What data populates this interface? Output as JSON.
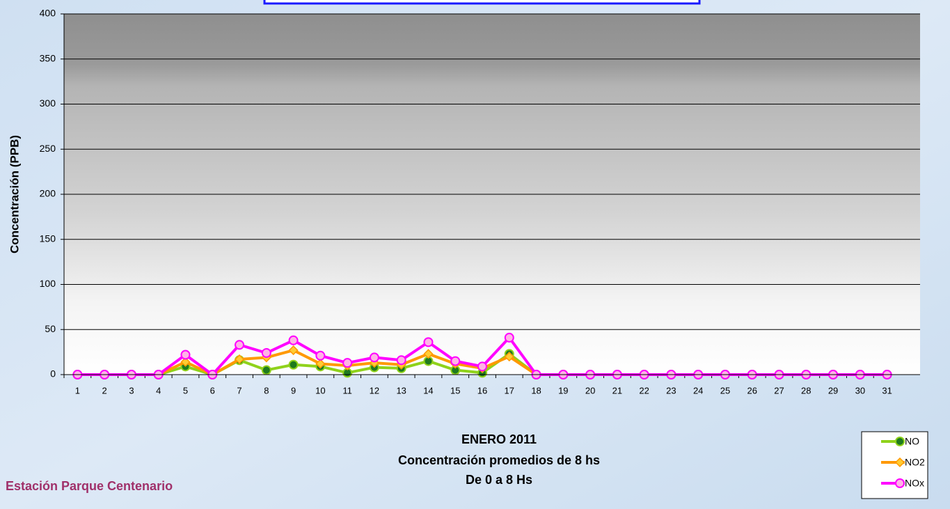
{
  "chart_data": {
    "type": "line",
    "title": "ENERO 2011",
    "subtitle_lines": [
      "Concentración promedios de 8 hs",
      "De 0 a 8 Hs"
    ],
    "annotation": "Estación Parque Centenario",
    "y_label": "Concentración  (PPB)",
    "categories": [
      "1",
      "2",
      "3",
      "4",
      "5",
      "6",
      "7",
      "8",
      "9",
      "10",
      "11",
      "12",
      "13",
      "14",
      "15",
      "16",
      "17",
      "18",
      "19",
      "20",
      "21",
      "22",
      "23",
      "24",
      "25",
      "26",
      "27",
      "28",
      "29",
      "30",
      "31"
    ],
    "series": [
      {
        "name": "NO",
        "color": "#8fd21b",
        "marker_color": "#1e7a1e",
        "marker": "circle",
        "values": [
          0,
          0,
          0,
          0,
          9,
          0,
          16,
          5,
          11,
          9,
          2,
          8,
          7,
          15,
          5,
          2,
          23,
          0,
          0,
          0,
          0,
          0,
          0,
          0,
          0,
          0,
          0,
          0,
          0,
          0,
          0
        ]
      },
      {
        "name": "NO2",
        "color": "#ff9900",
        "marker_color": "#ffcc33",
        "marker": "diamond",
        "values": [
          0,
          0,
          0,
          0,
          14,
          0,
          17,
          19,
          27,
          12,
          10,
          13,
          11,
          23,
          12,
          7,
          20,
          0,
          0,
          0,
          0,
          0,
          0,
          0,
          0,
          0,
          0,
          0,
          0,
          0,
          0
        ]
      },
      {
        "name": "NOx",
        "color": "#ff00ff",
        "marker_color": "#ffb3e6",
        "marker": "circle",
        "values": [
          0,
          0,
          0,
          0,
          22,
          0,
          33,
          24,
          38,
          21,
          13,
          19,
          16,
          36,
          15,
          9,
          41,
          0,
          0,
          0,
          0,
          0,
          0,
          0,
          0,
          0,
          0,
          0,
          0,
          0,
          0
        ]
      }
    ],
    "ylim": [
      0,
      400
    ],
    "yticks": [
      0,
      50,
      100,
      150,
      200,
      250,
      300,
      350,
      400
    ],
    "grid": true,
    "legend": "bottom-right"
  }
}
